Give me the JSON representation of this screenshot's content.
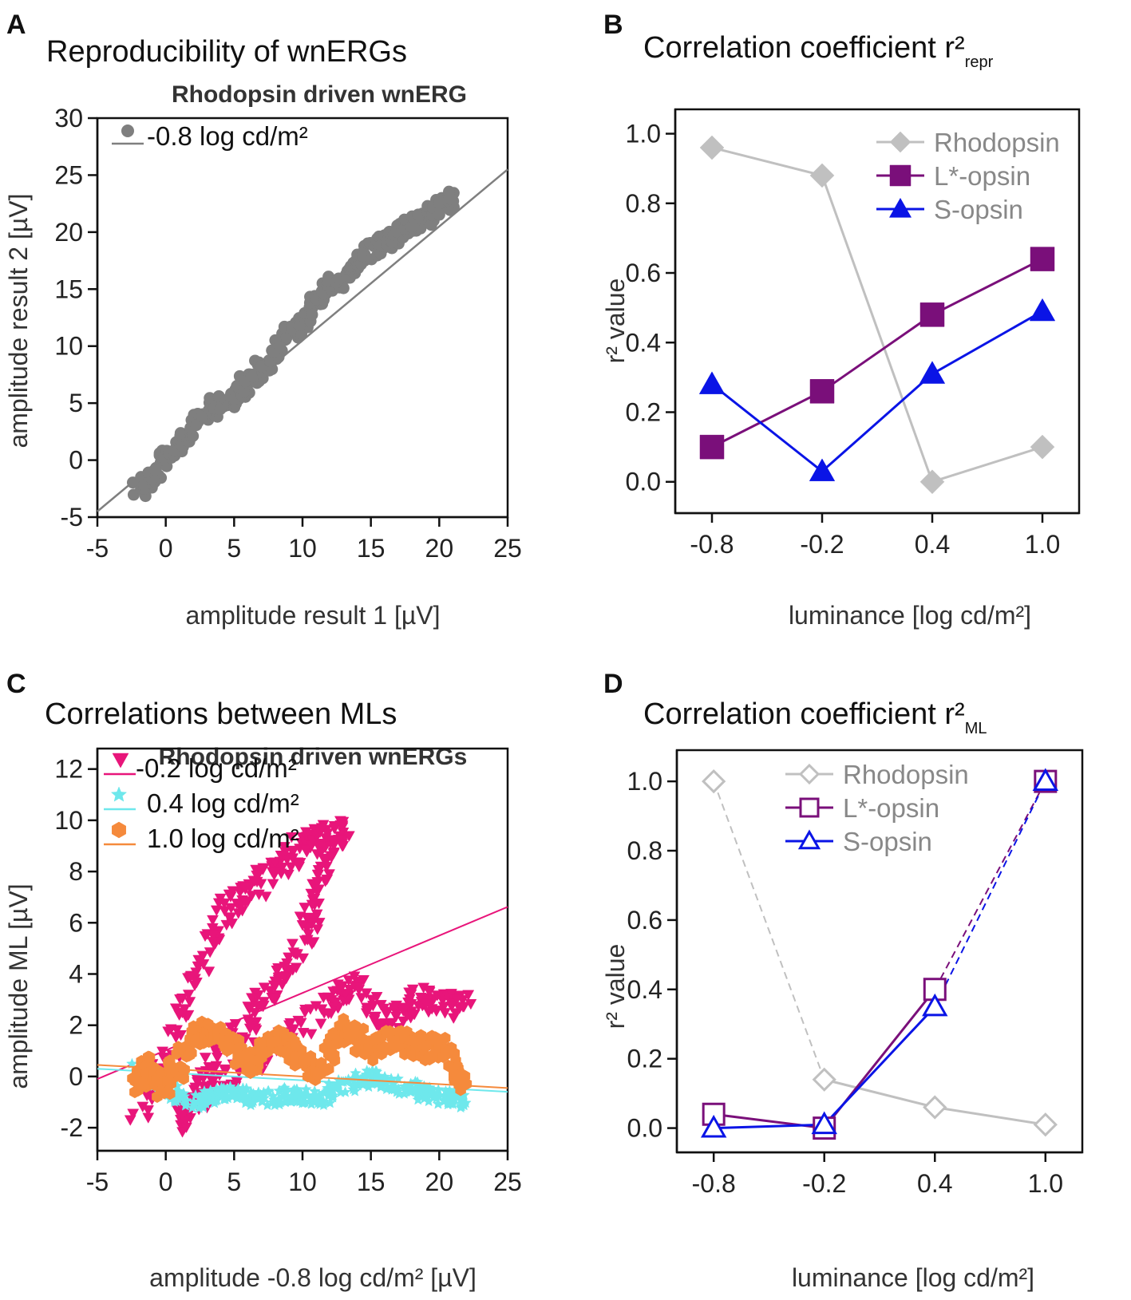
{
  "panels": {
    "A": {
      "label": "A",
      "title": "Reproducibility of wnERGs"
    },
    "B": {
      "label": "B",
      "title": "Correlation coefficient r²",
      "title_sub": "repr"
    },
    "C": {
      "label": "C",
      "title": "Correlations between MLs"
    },
    "D": {
      "label": "D",
      "title": "Correlation coefficient r²",
      "title_sub": "ML"
    }
  },
  "colors": {
    "gray": "#7f7f7f",
    "rhodopsin": "#c0c0c0",
    "lopsin": "#7a0f7a",
    "sopsin": "#0a14e6",
    "magenta": "#e8157a",
    "cyan": "#6ee8ec",
    "orange": "#f58a3c"
  },
  "chart_data": [
    {
      "id": "A",
      "type": "scatter",
      "subtitle": "Rhodopsin driven wnERG",
      "xlabel": "amplitude result 1 [µV]",
      "ylabel": "amplitude result 2 [µV]",
      "xlim": [
        -5,
        25
      ],
      "ylim": [
        -5,
        30
      ],
      "xticks": [
        -5,
        0,
        5,
        10,
        15,
        20,
        25
      ],
      "yticks": [
        -5,
        0,
        5,
        10,
        15,
        20,
        25,
        30
      ],
      "legend_position": "top-left",
      "series": [
        {
          "name": "-0.8 log cd/m²",
          "marker": "circle",
          "color": "#7f7f7f",
          "fit_line": {
            "slope": 1.0,
            "intercept": 0.5
          },
          "path_points": [
            [
              -2,
              -2.5
            ],
            [
              -1,
              -1.2
            ],
            [
              0,
              0.5
            ],
            [
              1,
              1.5
            ],
            [
              2,
              3.2
            ],
            [
              3,
              4.3
            ],
            [
              4,
              5.0
            ],
            [
              5,
              5.5
            ],
            [
              6,
              6.8
            ],
            [
              7,
              8.0
            ],
            [
              8,
              9.3
            ],
            [
              9,
              11.2
            ],
            [
              10,
              12.2
            ],
            [
              11,
              13.8
            ],
            [
              12,
              15.2
            ],
            [
              13,
              16.3
            ],
            [
              14,
              17.2
            ],
            [
              15,
              18.2
            ],
            [
              16,
              19.0
            ],
            [
              17,
              19.8
            ],
            [
              18,
              20.6
            ],
            [
              19,
              21.3
            ],
            [
              20,
              22.2
            ],
            [
              21,
              23.0
            ]
          ]
        }
      ]
    },
    {
      "id": "B",
      "type": "line",
      "xlabel": "luminance [log cd/m²]",
      "ylabel": "r² value",
      "x": [
        -0.8,
        -0.2,
        0.4,
        1.0
      ],
      "xticklabels": [
        "-0.8",
        "-0.2",
        "0.4",
        "1.0"
      ],
      "xlim": [
        -1.0,
        1.2
      ],
      "ylim": [
        -0.09,
        1.07
      ],
      "yticks": [
        0.0,
        0.2,
        0.4,
        0.6,
        0.8,
        1.0
      ],
      "yticklabels": [
        "0.0",
        "0.2",
        "0.4",
        "0.6",
        "0.8",
        "1.0"
      ],
      "legend_position": "top-right",
      "series": [
        {
          "name": "Rhodopsin",
          "marker": "diamond",
          "filled": true,
          "color": "#c0c0c0",
          "values": [
            0.96,
            0.88,
            0.0,
            0.1
          ]
        },
        {
          "name": "L*-opsin",
          "marker": "square",
          "filled": true,
          "color": "#7a0f7a",
          "values": [
            0.1,
            0.26,
            0.48,
            0.64
          ]
        },
        {
          "name": "S-opsin",
          "marker": "triangle",
          "filled": true,
          "color": "#0a14e6",
          "values": [
            0.28,
            0.03,
            0.31,
            0.49
          ]
        }
      ]
    },
    {
      "id": "C",
      "type": "scatter",
      "subtitle": "Rhodopsin driven wnERGs",
      "xlabel": "amplitude -0.8 log cd/m² [µV]",
      "ylabel": "amplitude ML [µV]",
      "xlim": [
        -5,
        25
      ],
      "ylim": [
        -2.9,
        12.8
      ],
      "xticks": [
        -5,
        0,
        5,
        10,
        15,
        20,
        25
      ],
      "yticks": [
        -2,
        0,
        2,
        4,
        6,
        8,
        10,
        12
      ],
      "legend_position": "top-left",
      "series": [
        {
          "name": "-0.2 log cd/m²",
          "marker": "triangle-down",
          "color": "#e8157a",
          "fit_line": {
            "slope": 0.224,
            "intercept": 1.02
          },
          "path_points": [
            [
              -2,
              -1.4
            ],
            [
              -1,
              -0.4
            ],
            [
              0,
              0.5
            ],
            [
              1,
              2.0
            ],
            [
              2,
              3.5
            ],
            [
              3,
              5.0
            ],
            [
              4,
              6.0
            ],
            [
              5,
              6.8
            ],
            [
              6,
              7.1
            ],
            [
              7,
              7.6
            ],
            [
              8,
              8.0
            ],
            [
              9,
              8.5
            ],
            [
              10,
              9.0
            ],
            [
              11,
              9.3
            ],
            [
              12,
              9.4
            ],
            [
              13,
              9.7
            ],
            [
              12,
              9.0
            ],
            [
              11.5,
              8.0
            ],
            [
              11,
              7.0
            ],
            [
              10.5,
              6.0
            ],
            [
              10,
              5.0
            ],
            [
              9,
              4.0
            ],
            [
              8,
              3.5
            ],
            [
              7,
              3.0
            ],
            [
              6,
              2.0
            ],
            [
              5,
              1.5
            ],
            [
              4,
              1.0
            ],
            [
              3,
              0.0
            ],
            [
              2,
              -1.0
            ],
            [
              1,
              -1.8
            ],
            [
              2,
              -1.0
            ],
            [
              4,
              -0.2
            ],
            [
              6,
              0.5
            ],
            [
              8,
              1.2
            ],
            [
              10,
              2.0
            ],
            [
              12,
              2.8
            ],
            [
              13,
              3.3
            ],
            [
              14,
              3.5
            ],
            [
              15,
              2.5
            ],
            [
              16,
              2.2
            ],
            [
              17,
              2.4
            ],
            [
              18,
              2.8
            ],
            [
              19,
              3.0
            ],
            [
              20,
              2.9
            ],
            [
              21,
              2.7
            ],
            [
              22,
              2.8
            ]
          ]
        },
        {
          "name": "0.4 log cd/m²",
          "marker": "star",
          "color": "#6ee8ec",
          "fit_line": {
            "slope": -0.03,
            "intercept": 0.15
          },
          "path_points": [
            [
              -2,
              0.2
            ],
            [
              -1,
              -0.2
            ],
            [
              0,
              -0.5
            ],
            [
              1,
              -0.8
            ],
            [
              2,
              -1.0
            ],
            [
              3,
              -0.9
            ],
            [
              4,
              -0.7
            ],
            [
              5,
              -0.6
            ],
            [
              6,
              -0.8
            ],
            [
              7,
              -0.9
            ],
            [
              8,
              -0.8
            ],
            [
              9,
              -0.7
            ],
            [
              10,
              -0.8
            ],
            [
              11,
              -0.9
            ],
            [
              12,
              -0.7
            ],
            [
              13,
              -0.4
            ],
            [
              14,
              -0.2
            ],
            [
              15,
              0.0
            ],
            [
              16,
              -0.2
            ],
            [
              17,
              -0.4
            ],
            [
              18,
              -0.5
            ],
            [
              19,
              -0.7
            ],
            [
              20,
              -0.8
            ],
            [
              21,
              -0.9
            ],
            [
              22,
              -1.0
            ]
          ]
        },
        {
          "name": "1.0 log cd/m²",
          "marker": "hexagon",
          "color": "#f58a3c",
          "fit_line": {
            "slope": -0.03,
            "intercept": 0.3
          },
          "path_points": [
            [
              -2,
              -0.5
            ],
            [
              -1.5,
              0.5
            ],
            [
              -1,
              0.0
            ],
            [
              0,
              -0.5
            ],
            [
              1,
              0.5
            ],
            [
              2,
              1.5
            ],
            [
              3,
              1.8
            ],
            [
              4,
              1.5
            ],
            [
              5,
              1.0
            ],
            [
              6,
              0.5
            ],
            [
              7,
              1.0
            ],
            [
              8,
              1.5
            ],
            [
              9,
              1.2
            ],
            [
              10,
              0.5
            ],
            [
              11,
              0.0
            ],
            [
              12,
              1.0
            ],
            [
              13,
              2.0
            ],
            [
              14,
              1.5
            ],
            [
              15,
              1.0
            ],
            [
              16,
              1.3
            ],
            [
              17,
              1.5
            ],
            [
              18,
              1.2
            ],
            [
              19,
              1.0
            ],
            [
              20,
              1.2
            ],
            [
              21,
              0.5
            ],
            [
              22,
              -0.5
            ]
          ]
        }
      ]
    },
    {
      "id": "D",
      "type": "line",
      "xlabel": "luminance [log cd/m²]",
      "ylabel": "r² value",
      "x": [
        -0.8,
        -0.2,
        0.4,
        1.0
      ],
      "xticklabels": [
        "-0.8",
        "-0.2",
        "0.4",
        "1.0"
      ],
      "xlim": [
        -1.0,
        1.2
      ],
      "ylim": [
        -0.07,
        1.09
      ],
      "yticks": [
        0.0,
        0.2,
        0.4,
        0.6,
        0.8,
        1.0
      ],
      "yticklabels": [
        "0.0",
        "0.2",
        "0.4",
        "0.6",
        "0.8",
        "1.0"
      ],
      "legend_position": "top-center",
      "series": [
        {
          "name": "Rhodopsin",
          "marker": "diamond",
          "filled": false,
          "color": "#c0c0c0",
          "values": [
            1.0,
            0.14,
            0.06,
            0.01
          ],
          "dashed_segments": [
            0
          ]
        },
        {
          "name": "L*-opsin",
          "marker": "square",
          "filled": false,
          "color": "#7a0f7a",
          "values": [
            0.04,
            0.0,
            0.4,
            1.0
          ],
          "dashed_segments": [
            2
          ]
        },
        {
          "name": "S-opsin",
          "marker": "triangle",
          "filled": false,
          "color": "#0a14e6",
          "values": [
            0.0,
            0.01,
            0.35,
            1.0
          ],
          "dashed_segments": [
            2
          ]
        }
      ]
    }
  ]
}
